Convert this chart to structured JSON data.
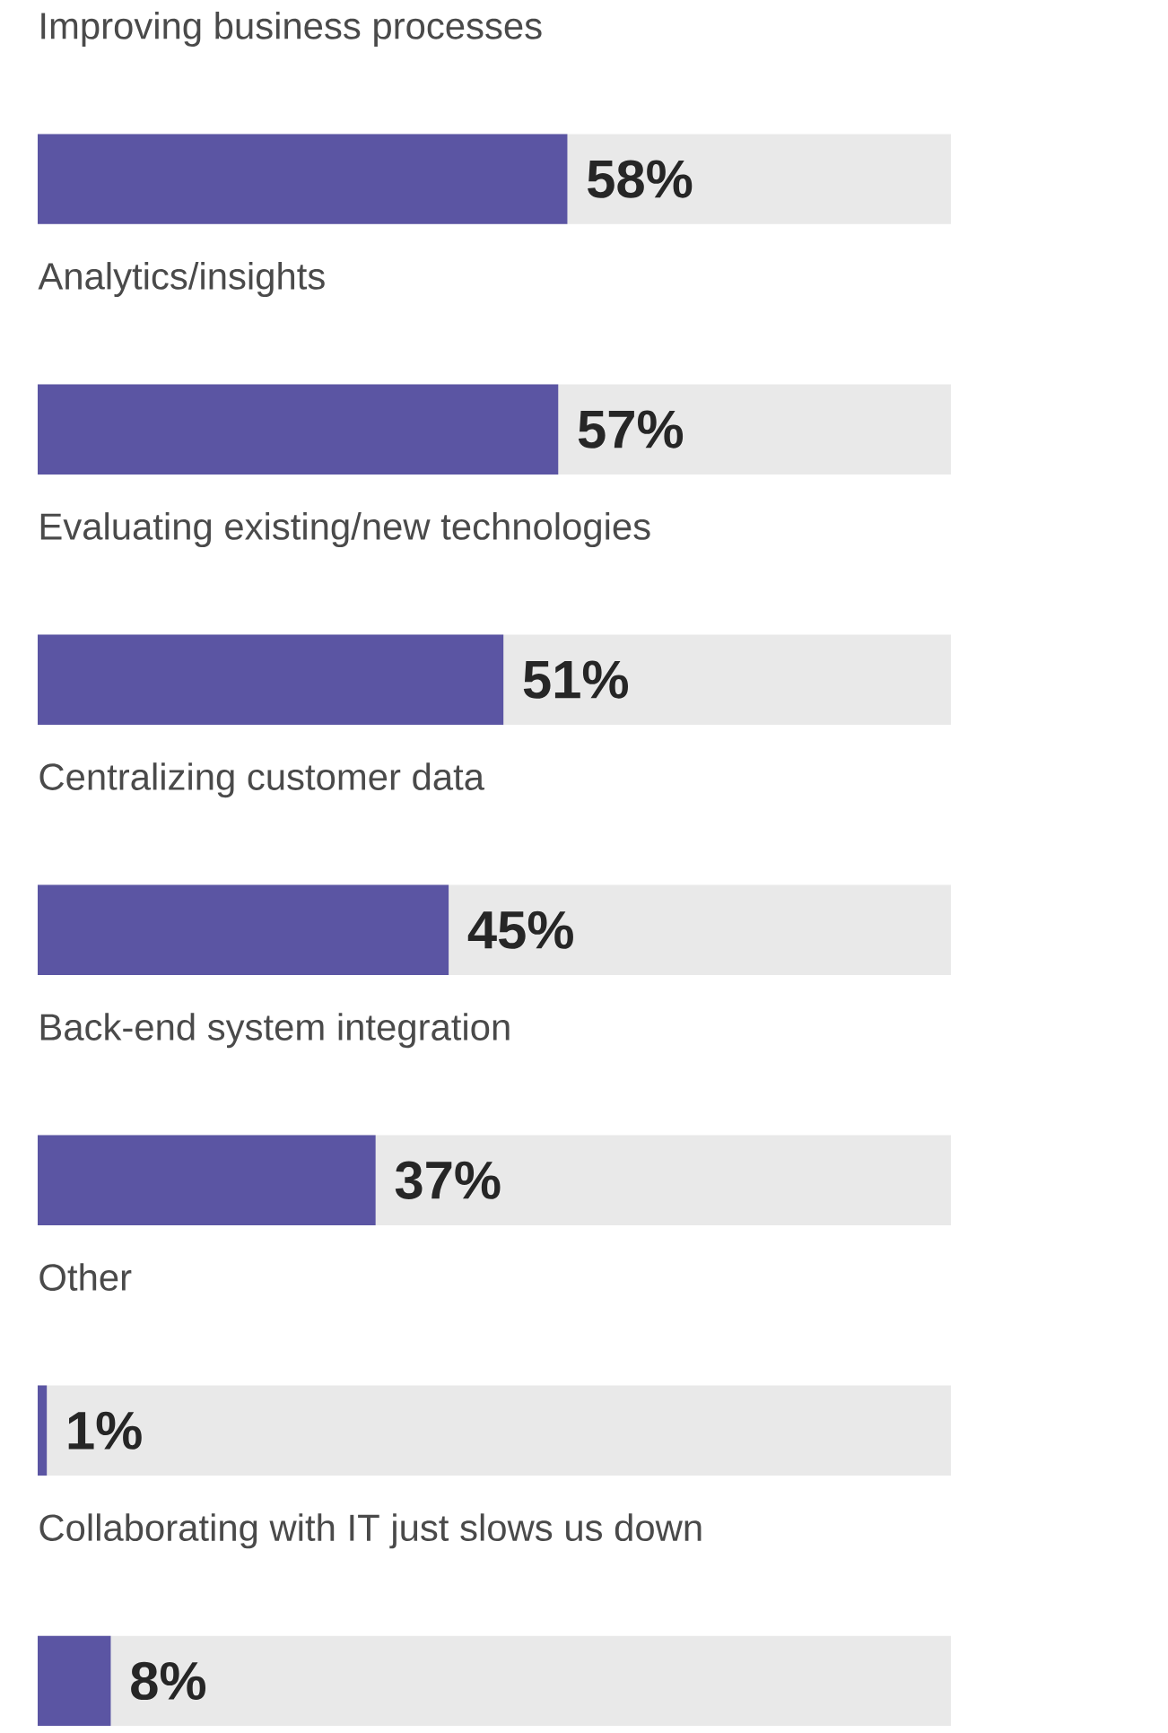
{
  "chart_data": {
    "type": "bar",
    "orientation": "horizontal",
    "categories": [
      "Improving business processes",
      "Analytics/insights",
      "Evaluating existing/new technologies",
      "Centralizing customer data",
      "Back-end system integration",
      "Other",
      "Collaborating with IT just slows us down"
    ],
    "values": [
      58,
      57,
      51,
      45,
      37,
      1,
      8
    ],
    "value_labels": [
      "58%",
      "57%",
      "51%",
      "45%",
      "37%",
      "1%",
      "8%"
    ],
    "color": "#5b55a3",
    "grid": false
  }
}
